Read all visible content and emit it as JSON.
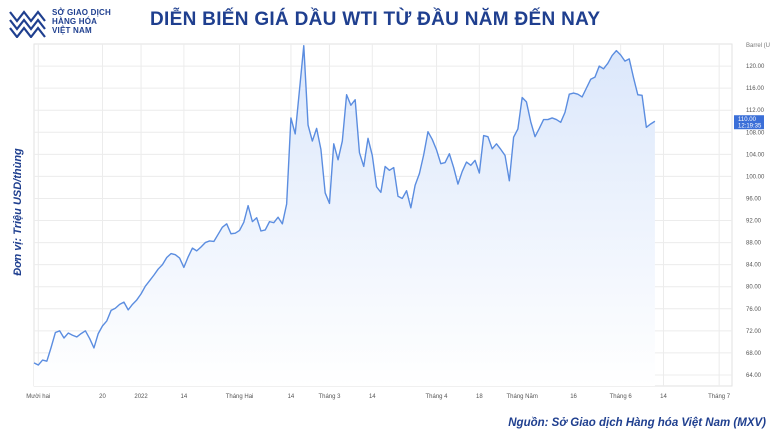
{
  "header": {
    "logo_line1": "SỞ GIAO DỊCH",
    "logo_line2": "HÀNG HÓA",
    "logo_line3": "VIỆT NAM",
    "title": "DIỄN BIẾN GIÁ DẦU WTI TỪ ĐẦU NĂM ĐẾN NAY"
  },
  "footer": {
    "source": "Nguồn: Sở Giao dịch Hàng hóa Việt Nam (MXV)"
  },
  "colors": {
    "brand": "#1f3f8f",
    "line": "#5b8de0",
    "fill": "#dbe7fb",
    "grid": "#ececec",
    "last_label_bg": "#3b6fd8"
  },
  "chart_data": {
    "type": "area",
    "title": "DIỄN BIẾN GIÁ DẦU WTI TỪ ĐẦU NĂM ĐẾN NAY",
    "xlabel": "",
    "ylabel": "Đơn vị: Triệu USD/thùng",
    "unit_label": "Barrel (U",
    "ylim": [
      62,
      124
    ],
    "y_ticks": [
      64,
      68,
      72,
      76,
      80,
      84,
      88,
      92,
      96,
      100,
      104,
      108,
      112,
      116,
      120
    ],
    "y_tick_labels": [
      "64.00",
      "68.00",
      "72.00",
      "76.00",
      "80.00",
      "84.00",
      "88.00",
      "92.00",
      "96.00",
      "100.00",
      "104.00",
      "108.00",
      "112.00",
      "116.00",
      "120.00"
    ],
    "x_ticks": [
      {
        "i": 1,
        "label": "Mười hai"
      },
      {
        "i": 16,
        "label": "20"
      },
      {
        "i": 25,
        "label": "2022"
      },
      {
        "i": 35,
        "label": "14"
      },
      {
        "i": 48,
        "label": "Tháng Hai"
      },
      {
        "i": 60,
        "label": "14"
      },
      {
        "i": 69,
        "label": "Tháng 3"
      },
      {
        "i": 79,
        "label": "14"
      },
      {
        "i": 94,
        "label": "Tháng 4"
      },
      {
        "i": 104,
        "label": "18"
      },
      {
        "i": 114,
        "label": "Tháng Năm"
      },
      {
        "i": 126,
        "label": "16"
      },
      {
        "i": 137,
        "label": "Tháng 6"
      },
      {
        "i": 147,
        "label": "14"
      },
      {
        "i": 160,
        "label": "Tháng 7"
      }
    ],
    "n_slots": 164,
    "grid": true,
    "last_price_label": "110.00",
    "last_time_label": "12:19:35",
    "values": [
      66.2,
      65.8,
      66.7,
      66.5,
      69.0,
      71.7,
      72.0,
      70.7,
      71.6,
      71.2,
      70.9,
      71.5,
      72.0,
      70.6,
      68.9,
      71.5,
      72.9,
      73.8,
      75.7,
      76.1,
      76.8,
      77.2,
      75.8,
      76.8,
      77.6,
      78.7,
      80.1,
      81.1,
      82.1,
      83.2,
      84.0,
      85.3,
      86.0,
      85.8,
      85.2,
      83.5,
      85.4,
      87.0,
      86.5,
      87.2,
      88.0,
      88.3,
      88.2,
      89.5,
      90.8,
      91.4,
      89.6,
      89.7,
      90.2,
      91.7,
      94.7,
      91.8,
      92.5,
      90.1,
      90.3,
      91.8,
      91.6,
      92.6,
      91.4,
      95.0,
      110.6,
      107.7,
      115.7,
      123.7,
      109.3,
      106.4,
      108.7,
      104.9,
      97.0,
      95.1,
      105.9,
      103.0,
      106.4,
      114.8,
      112.9,
      113.9,
      104.3,
      101.8,
      106.9,
      103.8,
      98.1,
      97.1,
      101.8,
      101.1,
      101.6,
      96.4,
      96.0,
      97.4,
      94.3,
      98.4,
      100.5,
      103.9,
      108.1,
      106.7,
      104.8,
      102.3,
      102.5,
      104.1,
      101.6,
      98.6,
      100.9,
      102.6,
      102.0,
      102.9,
      100.6,
      107.4,
      107.2,
      105.0,
      105.9,
      104.9,
      103.8,
      99.2,
      107.1,
      108.6,
      114.3,
      113.5,
      109.9,
      107.2,
      108.7,
      110.3,
      110.3,
      110.6,
      110.3,
      109.8,
      111.6,
      114.9,
      115.1,
      114.9,
      114.4,
      116.0,
      117.6,
      118.0,
      120.0,
      119.5,
      120.5,
      121.9,
      122.8,
      122.0,
      120.9,
      121.3,
      117.9,
      114.8,
      114.7,
      108.9,
      109.5,
      110.0
    ]
  }
}
